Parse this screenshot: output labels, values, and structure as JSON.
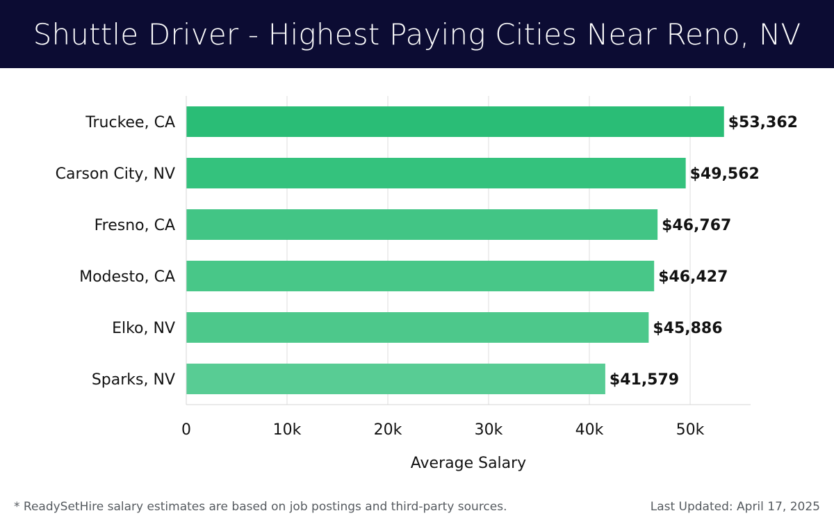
{
  "header": {
    "title": "Shuttle Driver - Highest Paying Cities Near Reno, NV",
    "background": "#0c0c33"
  },
  "chart_data": {
    "type": "bar",
    "orientation": "horizontal",
    "categories": [
      "Truckee, CA",
      "Carson City, NV",
      "Fresno, CA",
      "Modesto, CA",
      "Elko, NV",
      "Sparks, NV"
    ],
    "values": [
      53362,
      49562,
      46767,
      46427,
      45886,
      41579
    ],
    "value_labels": [
      "$53,362",
      "$49,562",
      "$46,767",
      "$46,427",
      "$45,886",
      "$41,579"
    ],
    "bar_colors": [
      "#2abd76",
      "#34c27d",
      "#42c585",
      "#48c788",
      "#4dc88b",
      "#58cc94"
    ],
    "xlabel": "Average Salary",
    "ylabel": "",
    "xlim": [
      0,
      56000
    ],
    "xticks": [
      0,
      10000,
      20000,
      30000,
      40000,
      50000
    ],
    "xtick_labels": [
      "0",
      "10k",
      "20k",
      "30k",
      "40k",
      "50k"
    ],
    "grid": "vertical"
  },
  "footer": {
    "note": "* ReadySetHire salary estimates are based on job postings and third-party sources.",
    "updated": "Last Updated: April 17, 2025"
  }
}
